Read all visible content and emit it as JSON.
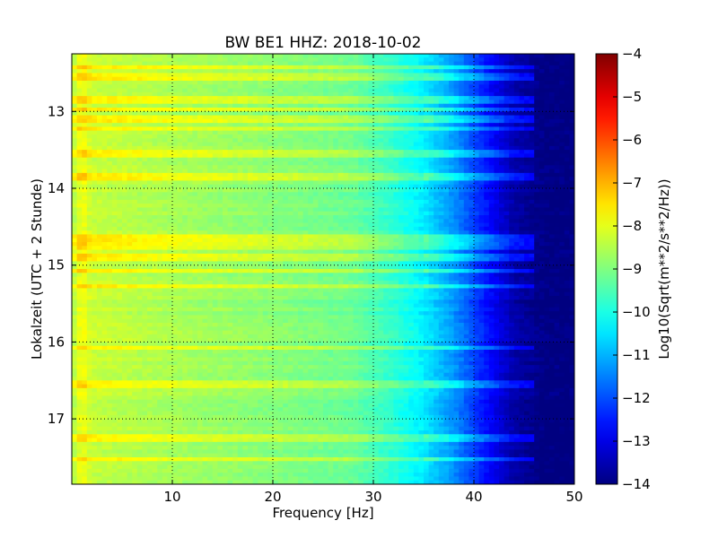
{
  "chart_data": {
    "type": "heatmap",
    "title": "BW BE1 HHZ: 2018-10-02",
    "xlabel": "Frequency [Hz]",
    "ylabel": "Lokalzeit (UTC + 2 Stunde)",
    "xlim": [
      0,
      50
    ],
    "ylim": [
      12.25,
      17.85
    ],
    "y_inverted": true,
    "xticks": [
      10,
      20,
      30,
      40,
      50
    ],
    "yticks": [
      13,
      14,
      15,
      16,
      17
    ],
    "grid": true,
    "colormap": "jet",
    "colorbar": {
      "label": "Log10(Sqrt(m**2/s**2/Hz))",
      "range": [
        -14,
        -4
      ],
      "ticks": [
        -4,
        -5,
        -6,
        -7,
        -8,
        -9,
        -10,
        -11,
        -12,
        -13,
        -14
      ]
    },
    "spectral_profile": {
      "frequency_hz": [
        0,
        1,
        2,
        5,
        10,
        20,
        28,
        32,
        35,
        38,
        41,
        44,
        47,
        50
      ],
      "log_amplitude": [
        -8.6,
        -7.8,
        -8.3,
        -8.4,
        -8.6,
        -8.9,
        -9.2,
        -9.8,
        -10.4,
        -11.3,
        -12.5,
        -13.6,
        -14.0,
        -14.0
      ]
    },
    "noisy_hours": [
      12.42,
      12.55,
      12.85,
      12.97,
      13.1,
      13.22,
      13.55,
      13.85,
      14.65,
      14.75,
      14.9,
      15.08,
      15.28,
      16.08,
      16.55,
      17.25,
      17.52
    ]
  },
  "colors": {
    "grid": "#000000",
    "frame": "#000000",
    "background": "#ffffff"
  }
}
